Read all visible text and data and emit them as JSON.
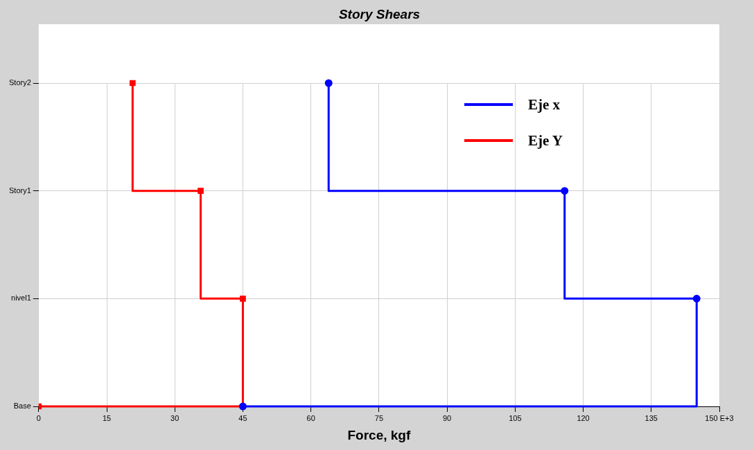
{
  "chart_data": {
    "type": "step",
    "orientation": "horizontal",
    "title": "Story Shears",
    "xlabel": "Force, kgf",
    "categories": [
      "Story2",
      "Story1",
      "nivel1",
      "Base"
    ],
    "xlim": [
      0,
      150
    ],
    "xticks": [
      0,
      15,
      30,
      45,
      60,
      75,
      90,
      105,
      120,
      135,
      {
        "value": 150,
        "label": "150 E+3"
      }
    ],
    "series": [
      {
        "name": "Eje x",
        "color": "#0000ff",
        "marker": "circle",
        "values": [
          63.9,
          115.9,
          145,
          45
        ]
      },
      {
        "name": "Eje Y",
        "color": "#ff0000",
        "marker": "square",
        "values": [
          20.7,
          35.7,
          45,
          0
        ]
      }
    ],
    "grid": true,
    "legend": "top right"
  }
}
